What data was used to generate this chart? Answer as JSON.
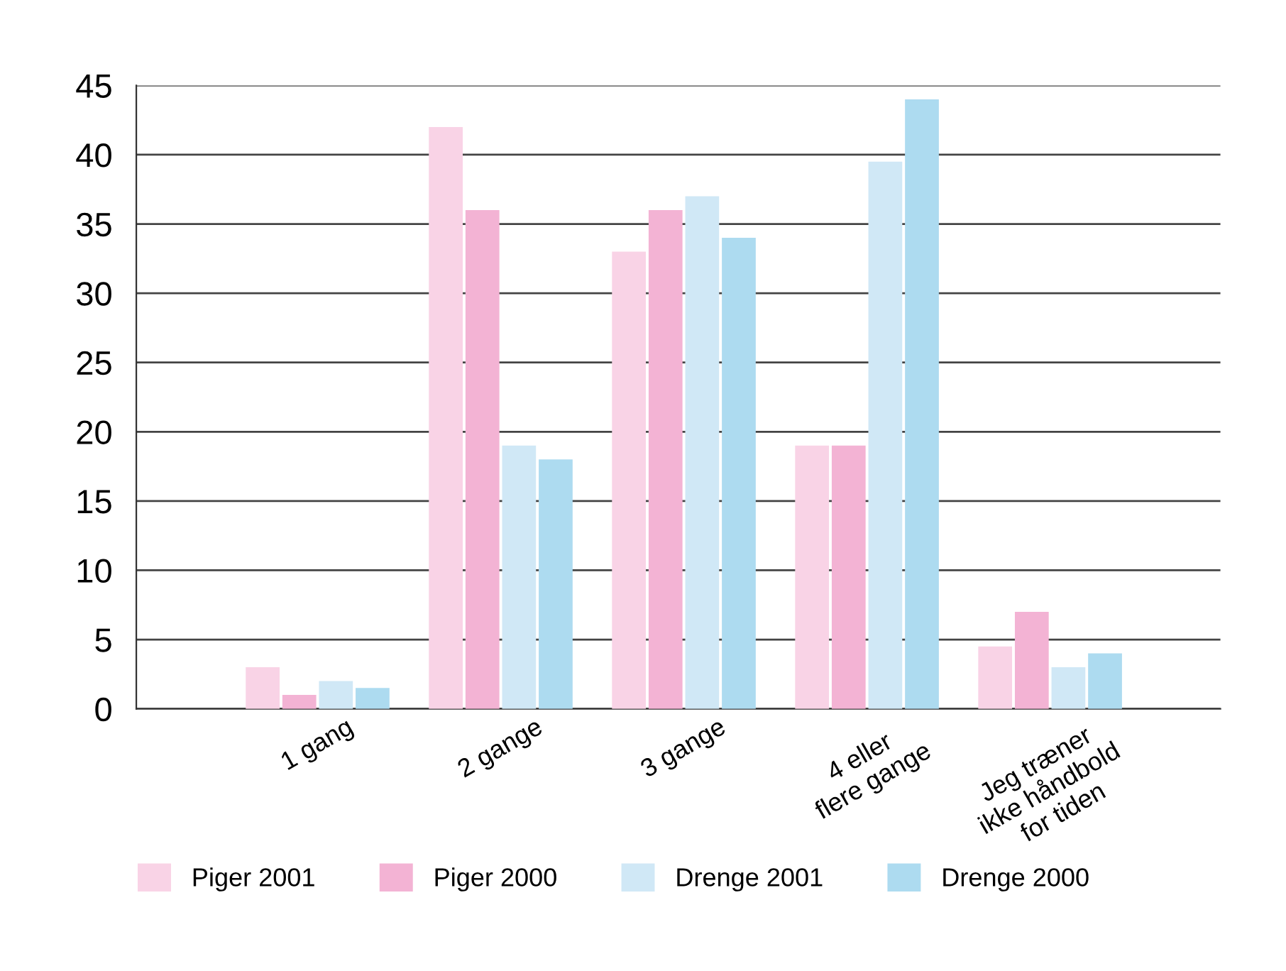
{
  "chart_data": {
    "type": "bar",
    "categories": [
      "1 gang",
      "2 gange",
      "3 gange",
      "4 eller\nflere gange",
      "Jeg træner\nikke håndbold\nfor tiden"
    ],
    "series": [
      {
        "name": "Piger 2001",
        "color": "#f9d3e6",
        "values": [
          3,
          42,
          33,
          19,
          4.5
        ]
      },
      {
        "name": "Piger 2000",
        "color": "#f3b3d4",
        "values": [
          1,
          36,
          36,
          19,
          7
        ]
      },
      {
        "name": "Drenge 2001",
        "color": "#d0e8f6",
        "values": [
          2,
          19,
          37,
          39.5,
          3
        ]
      },
      {
        "name": "Drenge 2000",
        "color": "#addbf0",
        "values": [
          1.5,
          18,
          34,
          44,
          4
        ]
      }
    ],
    "ylim": [
      0,
      45
    ],
    "yticks": [
      0,
      5,
      10,
      15,
      20,
      25,
      30,
      35,
      40,
      45
    ],
    "grid": "y",
    "legend": "bottom"
  }
}
